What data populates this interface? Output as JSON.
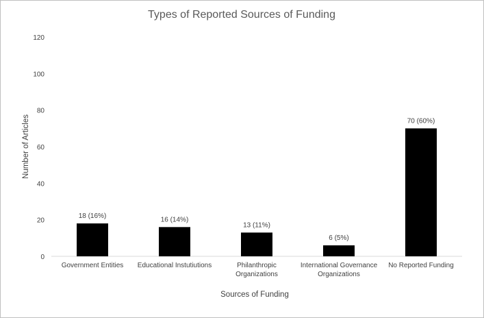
{
  "chart_data": {
    "type": "bar",
    "title": "Types of Reported Sources of Funding",
    "xlabel": "Sources of Funding",
    "ylabel": "Number of Articles",
    "ylim": [
      0,
      120
    ],
    "yticks": [
      0,
      20,
      40,
      60,
      80,
      100,
      120
    ],
    "grid": false,
    "legend": "none",
    "bar_color": "#000000",
    "categories": [
      [
        "Government Entities"
      ],
      [
        "Educational Instutiutions"
      ],
      [
        "Philanthropic",
        "Organizations"
      ],
      [
        "International Governance",
        "Organizations"
      ],
      [
        "No Reported Funding"
      ]
    ],
    "values": [
      18,
      16,
      13,
      6,
      70
    ],
    "data_labels": [
      "18 (16%)",
      "16 (14%)",
      "13 (11%)",
      "6 (5%)",
      "70 (60%)"
    ]
  }
}
